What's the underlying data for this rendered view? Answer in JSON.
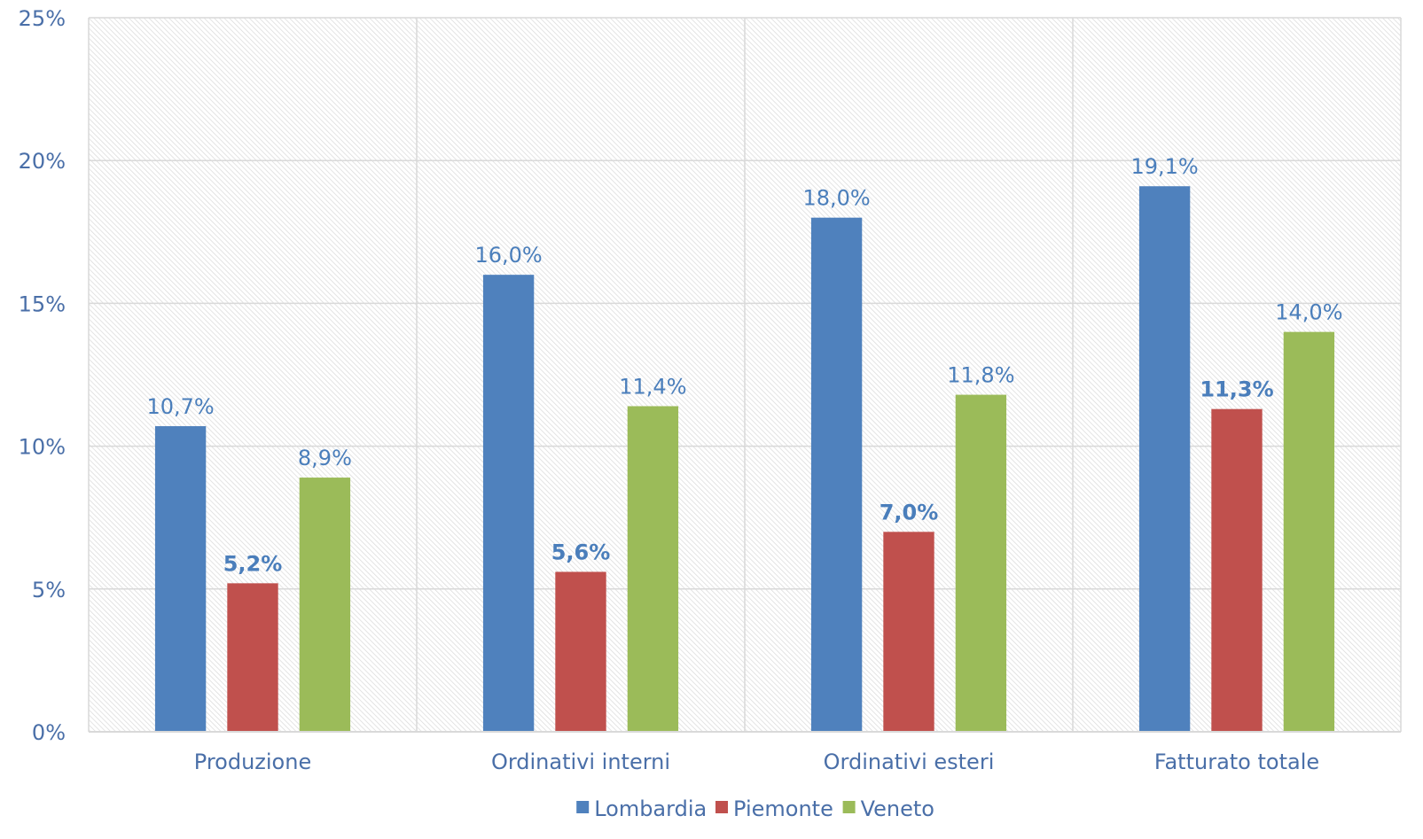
{
  "chart_data": {
    "type": "bar",
    "title": "",
    "xlabel": "",
    "ylabel": "",
    "ylim": [
      0,
      25
    ],
    "y_ticks": [
      "0%",
      "5%",
      "10%",
      "15%",
      "20%",
      "25%"
    ],
    "y_tick_values": [
      0,
      5,
      10,
      15,
      20,
      25
    ],
    "grid": true,
    "legend_position": "bottom",
    "categories": [
      "Produzione",
      "Ordinativi interni",
      "Ordinativi esteri",
      "Fatturato totale"
    ],
    "series": [
      {
        "name": "Lombardia",
        "color": "#4f81bd",
        "values": [
          10.7,
          16.0,
          18.0,
          19.1
        ],
        "labels": [
          "10,7%",
          "16,0%",
          "18,0%",
          "19,1%"
        ],
        "label_bold": false
      },
      {
        "name": "Piemonte",
        "color": "#c0504d",
        "values": [
          5.2,
          5.6,
          7.0,
          11.3
        ],
        "labels": [
          "5,2%",
          "5,6%",
          "7,0%",
          "11,3%"
        ],
        "label_bold": true
      },
      {
        "name": "Veneto",
        "color": "#9bbb59",
        "values": [
          8.9,
          11.4,
          11.8,
          14.0
        ],
        "labels": [
          "8,9%",
          "11,4%",
          "11,8%",
          "14,0%"
        ],
        "label_bold": false
      }
    ]
  }
}
